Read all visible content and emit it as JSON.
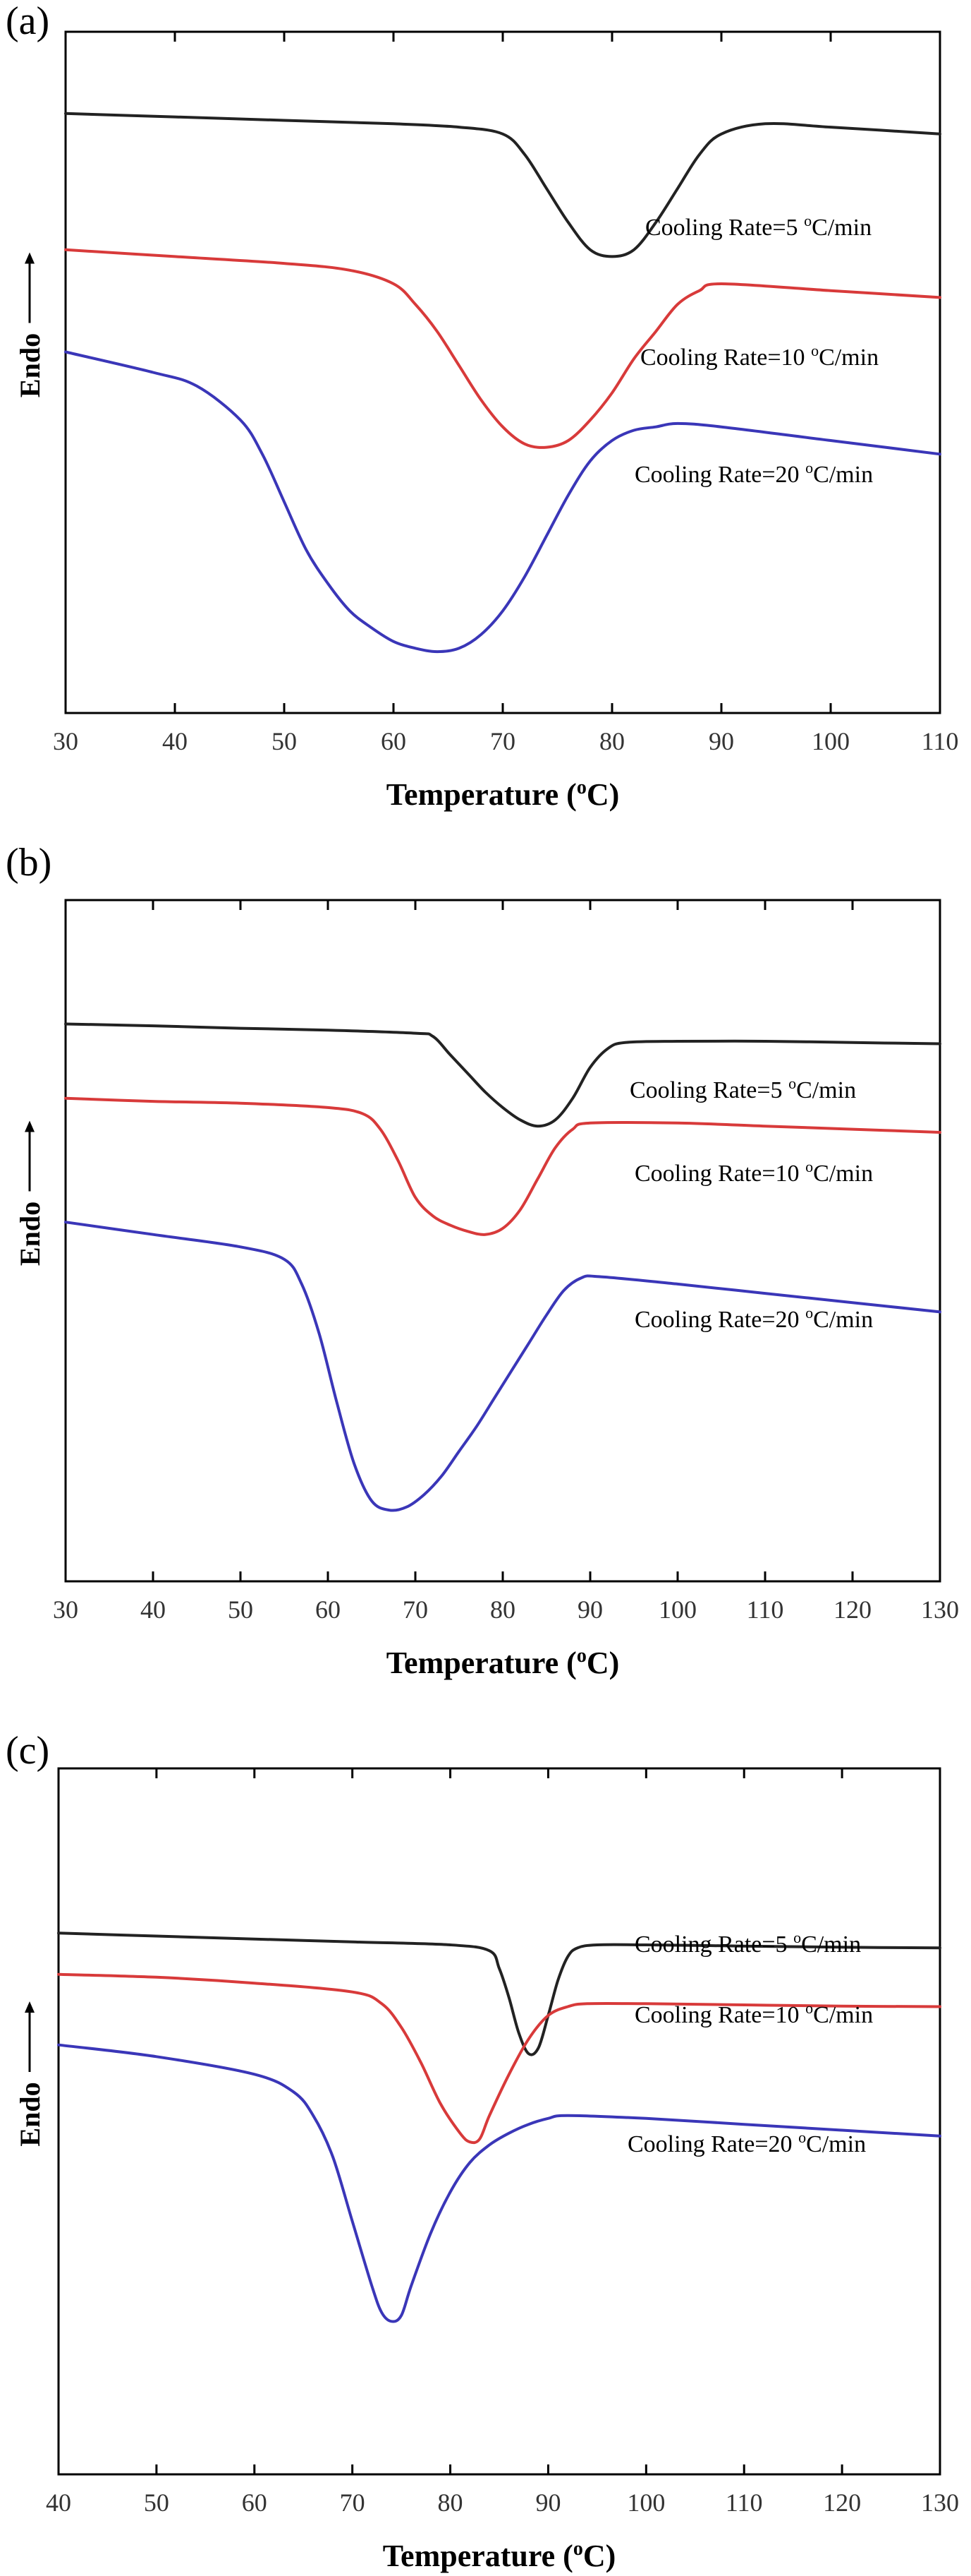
{
  "colors": {
    "black": "#222222",
    "red": "#d83a3a",
    "blue": "#3a36b8"
  },
  "chart_data": [
    {
      "type": "line",
      "panel": "(a)",
      "xlabel": "Temperature (°C)",
      "ylabel": "Endo",
      "xlim": [
        30,
        110
      ],
      "xticks": [
        30,
        40,
        50,
        60,
        70,
        80,
        90,
        100,
        110
      ],
      "series": [
        {
          "name": "Cooling Rate=5 °C/min",
          "color": "#222222",
          "x": [
            30,
            40,
            50,
            60,
            66,
            70,
            72,
            74,
            76,
            78,
            80,
            82,
            84,
            86,
            88,
            90,
            94,
            100,
            110
          ],
          "y": [
            8.8,
            8.75,
            8.7,
            8.65,
            8.6,
            8.5,
            8.2,
            7.7,
            7.2,
            6.8,
            6.7,
            6.8,
            7.2,
            7.7,
            8.2,
            8.5,
            8.65,
            8.6,
            8.5
          ]
        },
        {
          "name": "Cooling Rate=10 °C/min",
          "color": "#d83a3a",
          "x": [
            30,
            40,
            50,
            56,
            60,
            62,
            64,
            66,
            68,
            70,
            72,
            74,
            76,
            78,
            80,
            82,
            84,
            86,
            88,
            90,
            100,
            110
          ],
          "y": [
            6.8,
            6.7,
            6.6,
            6.5,
            6.3,
            6.0,
            5.6,
            5.1,
            4.6,
            4.2,
            3.95,
            3.9,
            4.0,
            4.3,
            4.7,
            5.2,
            5.6,
            6.0,
            6.2,
            6.3,
            6.2,
            6.1
          ]
        },
        {
          "name": "Cooling Rate=20 °C/min",
          "color": "#3a36b8",
          "x": [
            30,
            38,
            42,
            46,
            48,
            50,
            52,
            54,
            56,
            58,
            60,
            62,
            64,
            66,
            68,
            70,
            72,
            74,
            76,
            78,
            80,
            82,
            84,
            86,
            90,
            100,
            110
          ],
          "y": [
            5.3,
            5.0,
            4.8,
            4.3,
            3.8,
            3.1,
            2.4,
            1.9,
            1.5,
            1.25,
            1.05,
            0.95,
            0.9,
            0.95,
            1.15,
            1.5,
            2.0,
            2.6,
            3.2,
            3.7,
            4.0,
            4.15,
            4.2,
            4.25,
            4.2,
            4.0,
            3.8
          ]
        }
      ]
    },
    {
      "type": "line",
      "panel": "(b)",
      "xlabel": "Temperature (°C)",
      "ylabel": "Endo",
      "xlim": [
        30,
        130
      ],
      "xticks": [
        30,
        40,
        50,
        60,
        70,
        80,
        90,
        100,
        110,
        120,
        130
      ],
      "series": [
        {
          "name": "Cooling Rate=5 °C/min",
          "color": "#222222",
          "x": [
            30,
            40,
            50,
            60,
            70,
            72,
            74,
            76,
            78,
            80,
            82,
            84,
            86,
            88,
            90,
            92,
            94,
            100,
            110,
            120,
            130
          ],
          "y": [
            9.0,
            8.97,
            8.93,
            8.9,
            8.85,
            8.8,
            8.5,
            8.2,
            7.9,
            7.65,
            7.45,
            7.35,
            7.45,
            7.8,
            8.3,
            8.6,
            8.7,
            8.72,
            8.72,
            8.7,
            8.68
          ]
        },
        {
          "name": "Cooling Rate=10 °C/min",
          "color": "#d83a3a",
          "x": [
            30,
            40,
            50,
            60,
            64,
            66,
            68,
            70,
            72,
            74,
            76,
            78,
            80,
            82,
            84,
            86,
            88,
            90,
            100,
            110,
            120,
            130
          ],
          "y": [
            7.8,
            7.75,
            7.72,
            7.65,
            7.55,
            7.3,
            6.8,
            6.2,
            5.9,
            5.75,
            5.65,
            5.6,
            5.7,
            6.0,
            6.5,
            7.0,
            7.3,
            7.4,
            7.4,
            7.35,
            7.3,
            7.25
          ]
        },
        {
          "name": "Cooling Rate=20 °C/min",
          "color": "#3a36b8",
          "x": [
            30,
            40,
            50,
            55,
            57,
            59,
            61,
            63,
            65,
            67,
            69,
            71,
            73,
            75,
            77,
            79,
            81,
            83,
            85,
            87,
            89,
            91,
            100,
            110,
            120,
            130
          ],
          "y": [
            5.8,
            5.6,
            5.4,
            5.2,
            4.8,
            4.0,
            2.9,
            1.9,
            1.3,
            1.15,
            1.2,
            1.4,
            1.7,
            2.1,
            2.5,
            2.95,
            3.4,
            3.85,
            4.3,
            4.7,
            4.9,
            4.92,
            4.8,
            4.65,
            4.5,
            4.35
          ]
        }
      ]
    },
    {
      "type": "line",
      "panel": "(c)",
      "xlabel": "Temperature (°C)",
      "ylabel": "Endo",
      "xlim": [
        40,
        130
      ],
      "xticks": [
        40,
        50,
        60,
        70,
        80,
        90,
        100,
        110,
        120,
        130
      ],
      "series": [
        {
          "name": "Cooling Rate=5 °C/min",
          "color": "#222222",
          "x": [
            40,
            50,
            60,
            70,
            80,
            84,
            85,
            86,
            87,
            88,
            89,
            90,
            91,
            92,
            93,
            95,
            100,
            110,
            120,
            130
          ],
          "y": [
            9.2,
            9.15,
            9.1,
            9.05,
            9.0,
            8.9,
            8.6,
            8.1,
            7.5,
            7.15,
            7.25,
            7.8,
            8.4,
            8.8,
            8.95,
            9.0,
            9.0,
            8.98,
            8.96,
            8.95
          ]
        },
        {
          "name": "Cooling Rate=10 °C/min",
          "color": "#d83a3a",
          "x": [
            40,
            50,
            60,
            70,
            73,
            75,
            77,
            79,
            81,
            82,
            83,
            84,
            86,
            88,
            90,
            92,
            94,
            100,
            110,
            120,
            130
          ],
          "y": [
            8.5,
            8.45,
            8.35,
            8.2,
            8.0,
            7.6,
            7.0,
            6.3,
            5.8,
            5.65,
            5.7,
            6.1,
            6.8,
            7.4,
            7.8,
            7.95,
            8.0,
            8.0,
            7.98,
            7.96,
            7.95
          ]
        },
        {
          "name": "Cooling Rate=20 °C/min",
          "color": "#3a36b8",
          "x": [
            40,
            50,
            60,
            64,
            66,
            68,
            70,
            72,
            73,
            74,
            75,
            76,
            78,
            80,
            82,
            84,
            86,
            88,
            90,
            92,
            100,
            110,
            120,
            130
          ],
          "y": [
            7.3,
            7.1,
            6.8,
            6.5,
            6.1,
            5.4,
            4.3,
            3.2,
            2.75,
            2.6,
            2.7,
            3.2,
            4.1,
            4.8,
            5.3,
            5.6,
            5.8,
            5.95,
            6.05,
            6.1,
            6.05,
            5.95,
            5.85,
            5.75
          ]
        }
      ]
    }
  ],
  "panels": [
    {
      "label": "(a)",
      "xlabel_main": "Temperature (",
      "xlabel_sup": "o",
      "xlabel_end": "C)",
      "ylabel": "Endo",
      "series_labels": [
        {
          "pre": "Cooling Rate=5 ",
          "sup": "o",
          "post": "C/min"
        },
        {
          "pre": "Cooling Rate=10 ",
          "sup": "o",
          "post": "C/min"
        },
        {
          "pre": "Cooling Rate=20 ",
          "sup": "o",
          "post": "C/min"
        }
      ]
    },
    {
      "label": "(b)",
      "xlabel_main": "Temperature (",
      "xlabel_sup": "o",
      "xlabel_end": "C)",
      "ylabel": "Endo",
      "series_labels": [
        {
          "pre": "Cooling Rate=5 ",
          "sup": "o",
          "post": "C/min"
        },
        {
          "pre": "Cooling Rate=10 ",
          "sup": "o",
          "post": "C/min"
        },
        {
          "pre": "Cooling Rate=20 ",
          "sup": "o",
          "post": "C/min"
        }
      ]
    },
    {
      "label": "(c)",
      "xlabel_main": "Temperature (",
      "xlabel_sup": "o",
      "xlabel_end": "C)",
      "ylabel": "Endo",
      "series_labels": [
        {
          "pre": "Cooling Rate=5 ",
          "sup": "o",
          "post": "C/min"
        },
        {
          "pre": "Cooling Rate=10 ",
          "sup": "o",
          "post": "C/min"
        },
        {
          "pre": "Cooling Rate=20 ",
          "sup": "o",
          "post": "C/min"
        }
      ]
    }
  ]
}
